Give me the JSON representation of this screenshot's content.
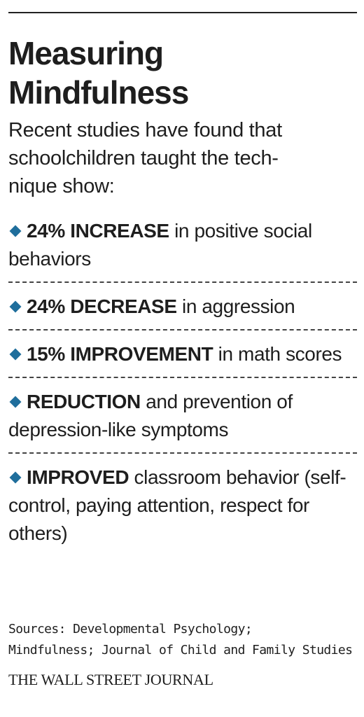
{
  "header": {
    "title_lines": [
      "Measuring",
      "Mindfulness"
    ],
    "subtitle_lines": [
      "Recent studies have found that",
      "schoolchildren taught the tech-",
      "nique show:"
    ]
  },
  "items": [
    {
      "bold": "24% INCREASE",
      "text": "in positive social behaviors"
    },
    {
      "bold": "24% DECREASE",
      "text": "in aggression"
    },
    {
      "bold": "15% IMPROVEMENT",
      "text": "in math scores"
    },
    {
      "bold": "REDUCTION",
      "text": "and prevention of depression-like symptoms"
    },
    {
      "bold": "IMPROVED",
      "text": "classroom behavior (self-control, paying attention, respect for others)"
    }
  ],
  "footer": {
    "sources_lines": [
      "Sources: Developmental Psychology;",
      "Mindfulness; Journal of Child and Family Studies"
    ],
    "publisher": "THE WALL STREET JOURNAL"
  }
}
